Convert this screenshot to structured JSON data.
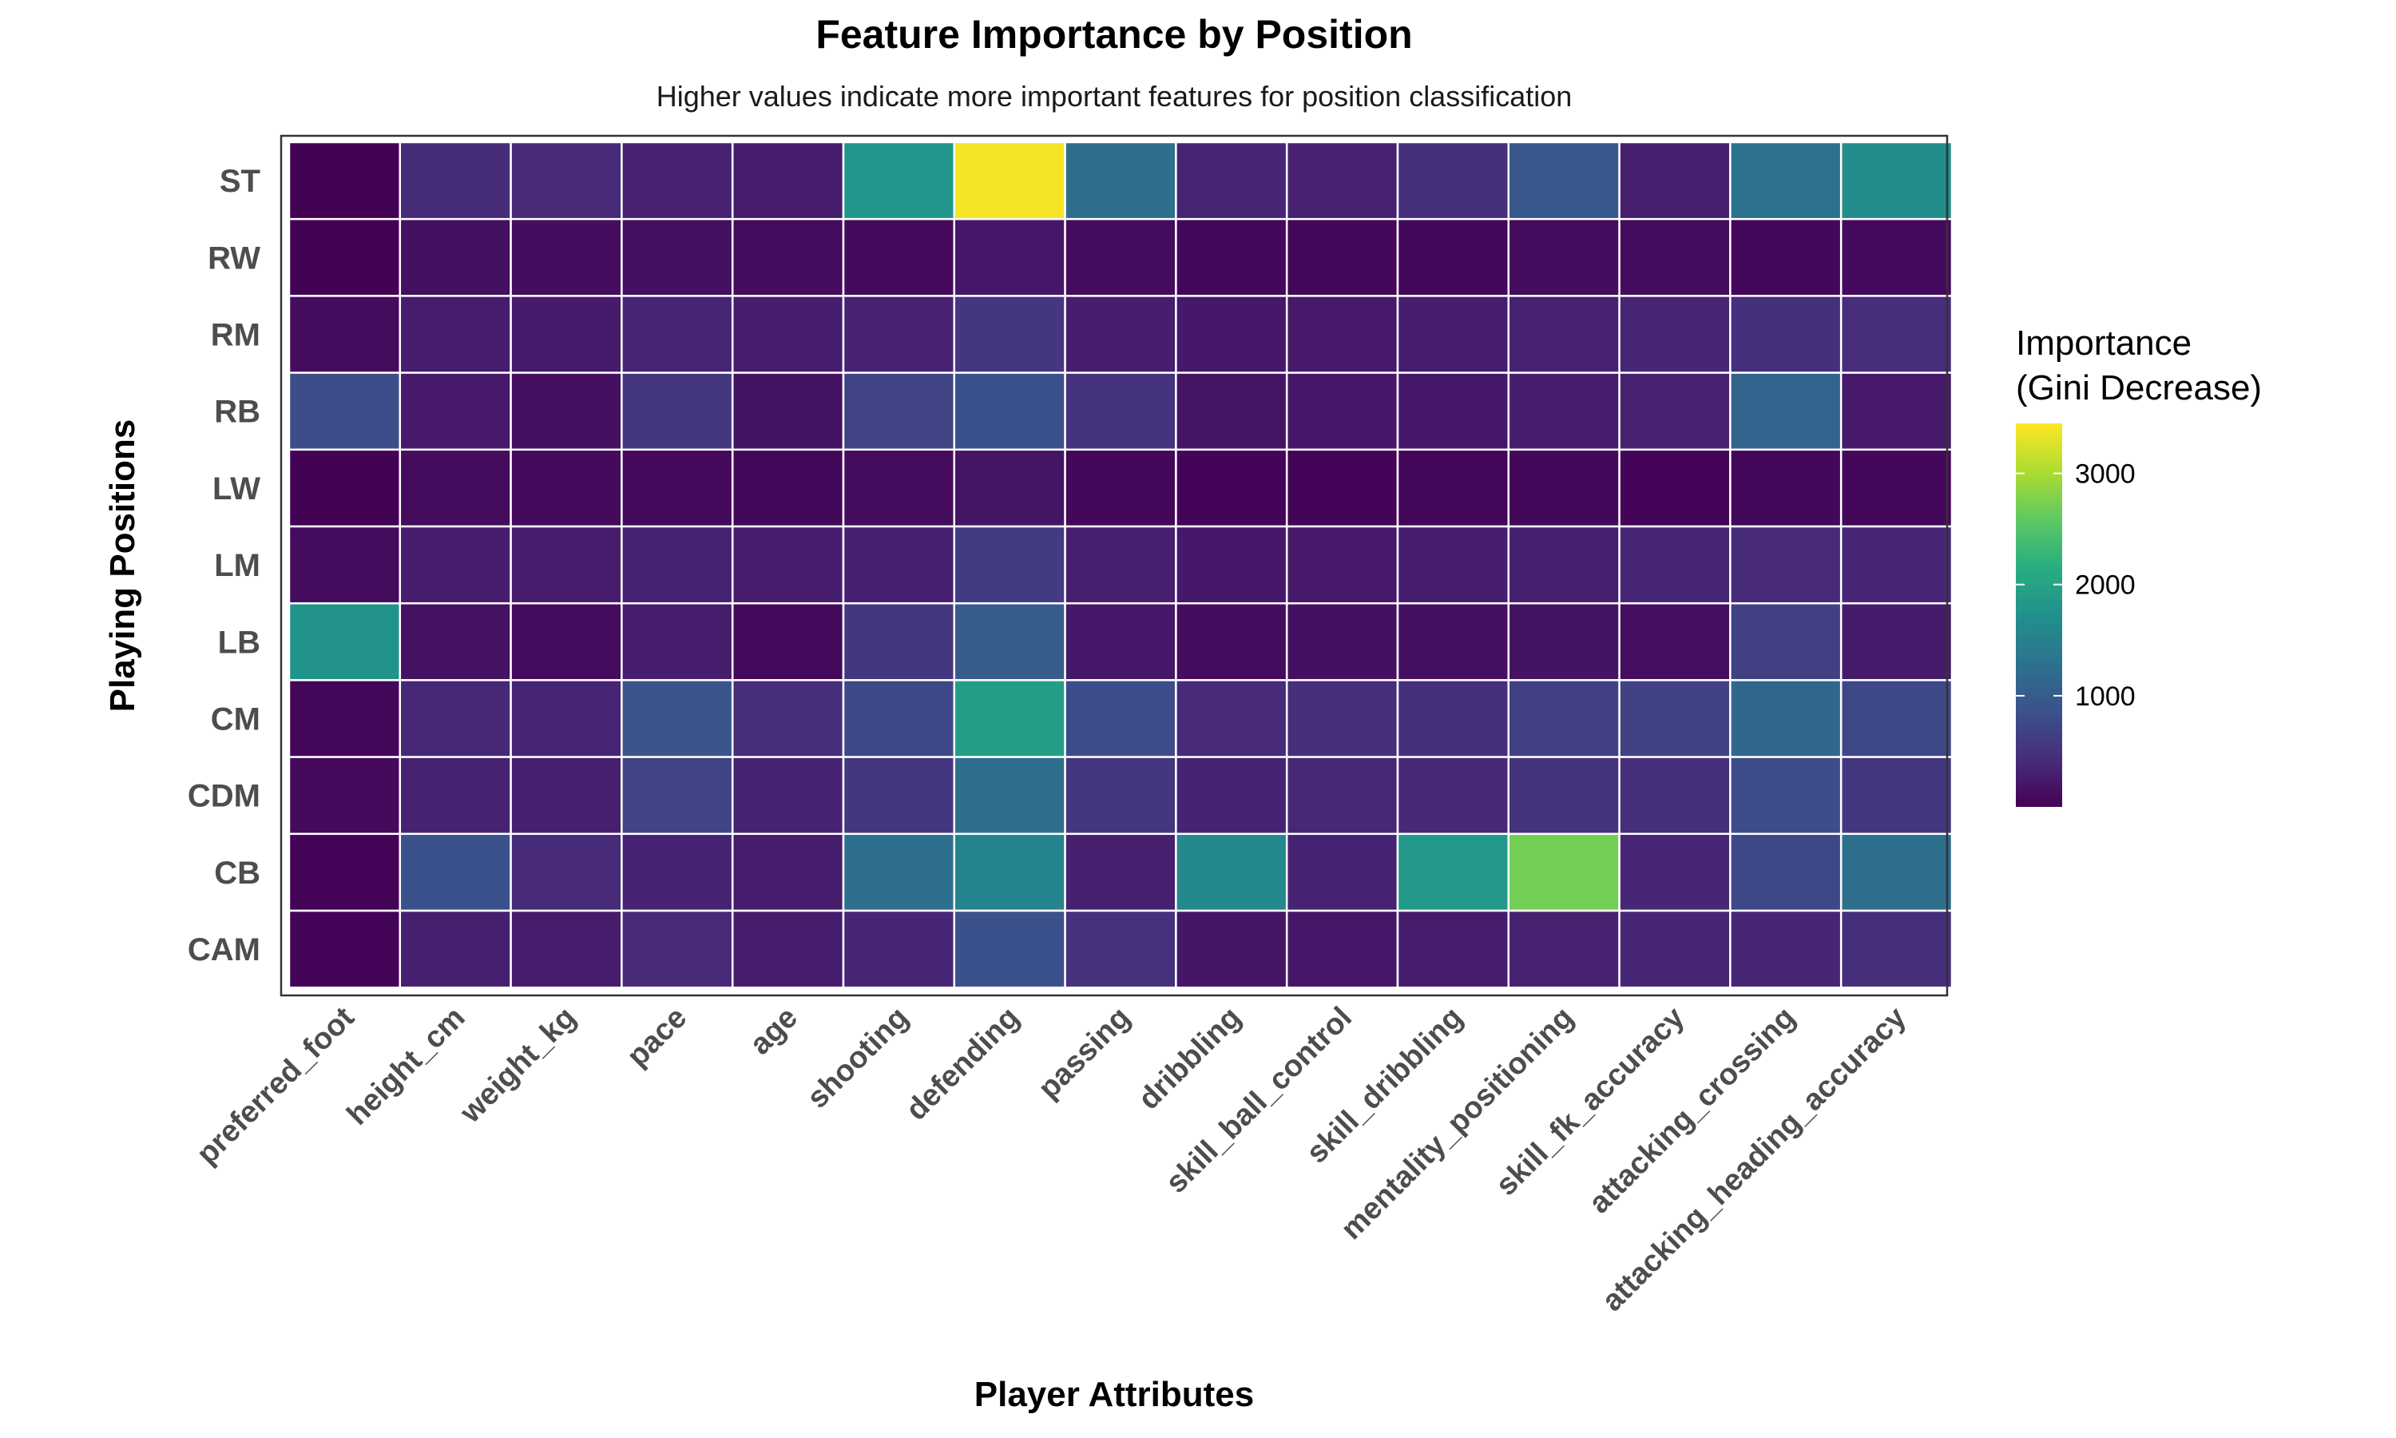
{
  "chart_data": {
    "type": "heatmap",
    "title": "Feature Importance by Position",
    "subtitle": "Higher values indicate more important features for position classification",
    "xlabel": "Player Attributes",
    "ylabel": "Playing Positions",
    "x_categories": [
      "preferred_foot",
      "height_cm",
      "weight_kg",
      "pace",
      "age",
      "shooting",
      "defending",
      "passing",
      "dribbling",
      "skill_ball_control",
      "skill_dribbling",
      "mentality_positioning",
      "skill_fk_accuracy",
      "attacking_crossing",
      "attacking_heading_accuracy"
    ],
    "y_categories": [
      "ST",
      "RW",
      "RM",
      "RB",
      "LW",
      "LM",
      "LB",
      "CM",
      "CDM",
      "CB",
      "CAM"
    ],
    "values": [
      [
        10,
        420,
        400,
        320,
        270,
        1800,
        3400,
        1250,
        350,
        320,
        450,
        950,
        300,
        1300,
        1650
      ],
      [
        10,
        150,
        120,
        150,
        100,
        90,
        220,
        110,
        60,
        60,
        70,
        100,
        110,
        70,
        90
      ],
      [
        110,
        270,
        250,
        350,
        280,
        320,
        550,
        280,
        230,
        240,
        280,
        320,
        360,
        450,
        430
      ],
      [
        800,
        240,
        150,
        550,
        180,
        700,
        850,
        500,
        190,
        220,
        230,
        280,
        320,
        1100,
        240
      ],
      [
        10,
        110,
        90,
        80,
        70,
        100,
        190,
        60,
        40,
        30,
        50,
        70,
        40,
        70,
        60
      ],
      [
        100,
        280,
        280,
        330,
        280,
        300,
        600,
        290,
        230,
        240,
        280,
        300,
        370,
        400,
        370
      ],
      [
        1750,
        160,
        110,
        270,
        80,
        550,
        1000,
        230,
        110,
        150,
        140,
        180,
        130,
        650,
        250
      ],
      [
        50,
        380,
        350,
        900,
        430,
        750,
        1900,
        800,
        400,
        440,
        470,
        650,
        680,
        1150,
        750
      ],
      [
        90,
        330,
        300,
        700,
        340,
        550,
        1250,
        550,
        340,
        380,
        390,
        500,
        460,
        800,
        550
      ],
      [
        20,
        850,
        400,
        330,
        260,
        1250,
        1550,
        300,
        1600,
        330,
        1850,
        2700,
        370,
        750,
        1250
      ],
      [
        30,
        300,
        260,
        400,
        270,
        360,
        850,
        480,
        200,
        220,
        260,
        320,
        370,
        370,
        440
      ]
    ],
    "colorscale": "viridis",
    "color_range": [
      0,
      3450
    ],
    "legend": {
      "title_line1": "Importance",
      "title_line2": "(Gini Decrease)",
      "ticks": [
        1000,
        2000,
        3000
      ],
      "tick_labels": [
        "1000",
        "2000",
        "3000"
      ],
      "placement": "right"
    }
  }
}
